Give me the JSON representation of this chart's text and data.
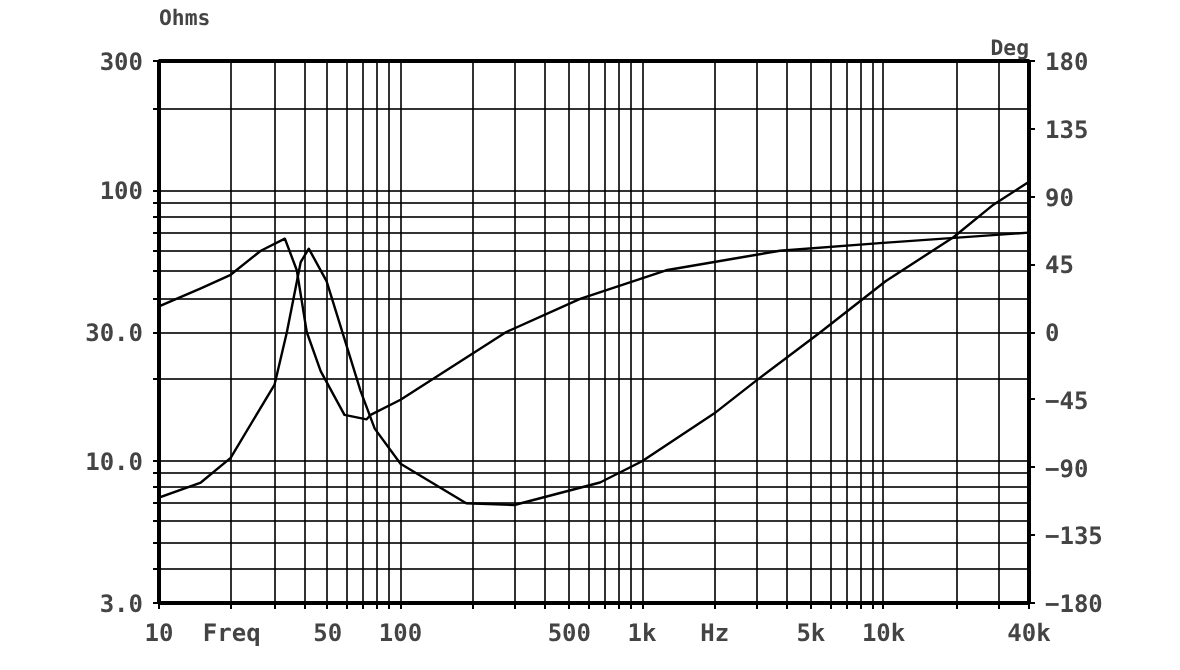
{
  "chart_data": {
    "type": "line",
    "ylabel": "Ohms",
    "y2label": "Deg",
    "log": "xy",
    "grid": true,
    "xlim": [
      10,
      40000
    ],
    "ylim": [
      3,
      300
    ],
    "y2lim": [
      -180,
      180
    ],
    "xticks": [
      10,
      {
        "value": 20,
        "label": "Freq"
      },
      {
        "value": 30,
        "label": null
      },
      {
        "value": 40,
        "label": null
      },
      50,
      {
        "value": 60,
        "label": null
      },
      {
        "value": 70,
        "label": null
      },
      {
        "value": 80,
        "label": null
      },
      {
        "value": 90,
        "label": null
      },
      100,
      {
        "value": 200,
        "label": null
      },
      {
        "value": 300,
        "label": null
      },
      {
        "value": 400,
        "label": null
      },
      500,
      {
        "value": 600,
        "label": null
      },
      {
        "value": 700,
        "label": null
      },
      {
        "value": 800,
        "label": null
      },
      {
        "value": 900,
        "label": null
      },
      {
        "value": 1000,
        "label": "1k"
      },
      {
        "value": 2000,
        "label": "Hz"
      },
      {
        "value": 3000,
        "label": null
      },
      {
        "value": 4000,
        "label": null
      },
      {
        "value": 5000,
        "label": "5k"
      },
      {
        "value": 6000,
        "label": null
      },
      {
        "value": 7000,
        "label": null
      },
      {
        "value": 8000,
        "label": null
      },
      {
        "value": 9000,
        "label": null
      },
      {
        "value": 10000,
        "label": "10k"
      },
      {
        "value": 20000,
        "label": null
      },
      {
        "value": 30000,
        "label": null
      },
      {
        "value": 40000,
        "label": "40k"
      }
    ],
    "yticks": [
      {
        "value": 3,
        "label": "3.0"
      },
      {
        "value": 4,
        "label": null
      },
      {
        "value": 5,
        "label": null
      },
      {
        "value": 6,
        "label": null
      },
      {
        "value": 7,
        "label": null
      },
      {
        "value": 8,
        "label": null
      },
      {
        "value": 9,
        "label": null
      },
      {
        "value": 10,
        "label": "10.0"
      },
      {
        "value": 20,
        "label": null
      },
      {
        "value": 30,
        "label": "30.0"
      },
      {
        "value": 40,
        "label": null
      },
      {
        "value": 50,
        "label": null
      },
      {
        "value": 60,
        "label": null
      },
      {
        "value": 70,
        "label": null
      },
      {
        "value": 80,
        "label": null
      },
      {
        "value": 90,
        "label": null
      },
      100,
      {
        "value": 200,
        "label": null
      },
      300
    ],
    "y2ticks": [
      -180,
      -135,
      -90,
      -45,
      0,
      45,
      90,
      135,
      180
    ],
    "series": [
      {
        "color": "#000000",
        "x": [
          10,
          14.9,
          19.8,
          30.1,
          33.8,
          38.6,
          41.7,
          49.4,
          58.6,
          68.3,
          78.2,
          100,
          187,
          296,
          670,
          1000,
          1986,
          2960,
          5440,
          10190,
          19460,
          28500,
          40000
        ],
        "values": [
          7.35,
          8.35,
          10.3,
          19.2,
          29.8,
          54.3,
          60.9,
          46.2,
          28.3,
          18.2,
          13.2,
          9.8,
          7.0,
          6.9,
          8.35,
          10.0,
          15.0,
          19.8,
          29.8,
          46.2,
          67.1,
          88.5,
          107.5
        ]
      },
      {
        "color": "#000000",
        "axis": "y2",
        "x": [
          10,
          14.9,
          19.8,
          26.4,
          33.2,
          37.2,
          40.9,
          46.7,
          58.6,
          72.4,
          75.2,
          100,
          274,
          554,
          1257,
          3717,
          9630,
          40000
        ],
        "values": [
          17,
          29,
          38,
          54,
          62,
          41,
          0,
          -26,
          -55,
          -58,
          -55,
          -45,
          0,
          22,
          41,
          54,
          59,
          66
        ]
      }
    ]
  }
}
